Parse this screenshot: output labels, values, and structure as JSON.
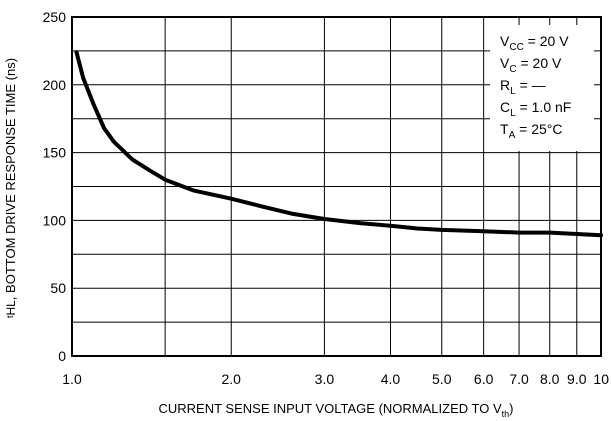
{
  "chart_data": {
    "type": "line",
    "title": "",
    "xlabel": "CURRENT SENSE INPUT VOLTAGE (NORMALIZED TO V",
    "xlabel_sub": "th",
    "xlabel_close": ")",
    "ylabel_prefix": "t",
    "ylabel_sub": "HL",
    "ylabel": ", BOTTOM DRIVE RESPONSE TIME (ns)",
    "xscale": "log",
    "xlim": [
      1.0,
      10.0
    ],
    "ylim": [
      0,
      250
    ],
    "grid": true,
    "x_ticks": [
      {
        "value": 1.0,
        "label": "1.0"
      },
      {
        "value": 2.0,
        "label": "2.0"
      },
      {
        "value": 3.0,
        "label": "3.0"
      },
      {
        "value": 4.0,
        "label": "4.0"
      },
      {
        "value": 5.0,
        "label": "5.0"
      },
      {
        "value": 6.0,
        "label": "6.0"
      },
      {
        "value": 7.0,
        "label": "7.0"
      },
      {
        "value": 8.0,
        "label": "8.0"
      },
      {
        "value": 9.0,
        "label": "9.0"
      },
      {
        "value": 10.0,
        "label": "10"
      }
    ],
    "y_ticks": [
      {
        "value": 0,
        "label": "0"
      },
      {
        "value": 50,
        "label": "50"
      },
      {
        "value": 100,
        "label": "100"
      },
      {
        "value": 150,
        "label": "150"
      },
      {
        "value": 200,
        "label": "200"
      },
      {
        "value": 250,
        "label": "250"
      }
    ],
    "series": [
      {
        "x": [
          1.02,
          1.05,
          1.1,
          1.15,
          1.2,
          1.3,
          1.4,
          1.5,
          1.7,
          2.0,
          2.3,
          2.6,
          3.0,
          3.5,
          4.0,
          4.5,
          5.0,
          6.0,
          7.0,
          8.0,
          9.0,
          10.0
        ],
        "y": [
          224,
          205,
          185,
          168,
          158,
          145,
          137,
          130,
          122,
          116,
          110,
          105,
          101,
          98,
          96,
          94,
          93,
          92,
          91,
          91,
          90,
          89
        ]
      }
    ],
    "legend": [
      {
        "main": "V",
        "sub": "CC",
        "rest": " = 20 V"
      },
      {
        "main": "V",
        "sub": "C",
        "rest": " = 20 V"
      },
      {
        "main": "R",
        "sub": "L",
        "rest": " = —"
      },
      {
        "main": "C",
        "sub": "L",
        "rest": " = 1.0 nF"
      },
      {
        "main": "T",
        "sub": "A",
        "rest": " = 25°C"
      }
    ],
    "legend_position": "top-right"
  },
  "colors": {
    "curve": "#000000",
    "grid": "#000000",
    "background": "#ffffff"
  }
}
